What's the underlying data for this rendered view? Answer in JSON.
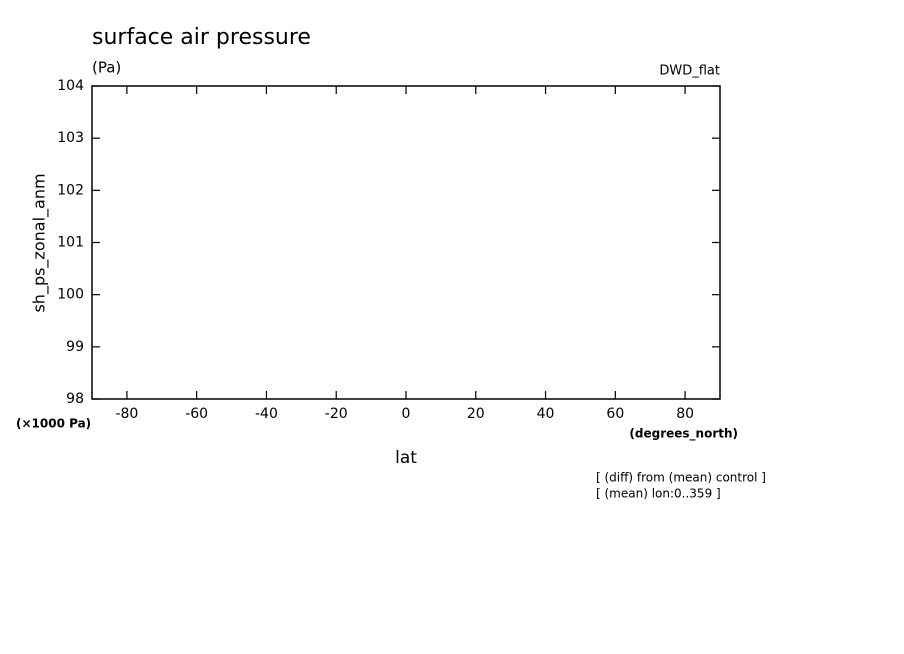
{
  "chart_data": {
    "type": "line",
    "title": "surface air pressure",
    "units": "(Pa)",
    "dataset": "DWD_flat",
    "ylabel": "sh_ps_zonal_anm",
    "y_scale_label": "(×1000 Pa)",
    "x_units": "(degrees_north)",
    "xlabel": "lat",
    "notes": [
      "[ (diff) from (mean) control ]",
      "[ (mean) lon:0..359 ]"
    ],
    "xlim": [
      -90,
      90
    ],
    "xticks": [
      -80,
      -60,
      -40,
      -20,
      0,
      20,
      40,
      60,
      80
    ],
    "ylim": [
      98,
      104
    ],
    "yticks": [
      98,
      99,
      100,
      101,
      102,
      103,
      104
    ]
  }
}
